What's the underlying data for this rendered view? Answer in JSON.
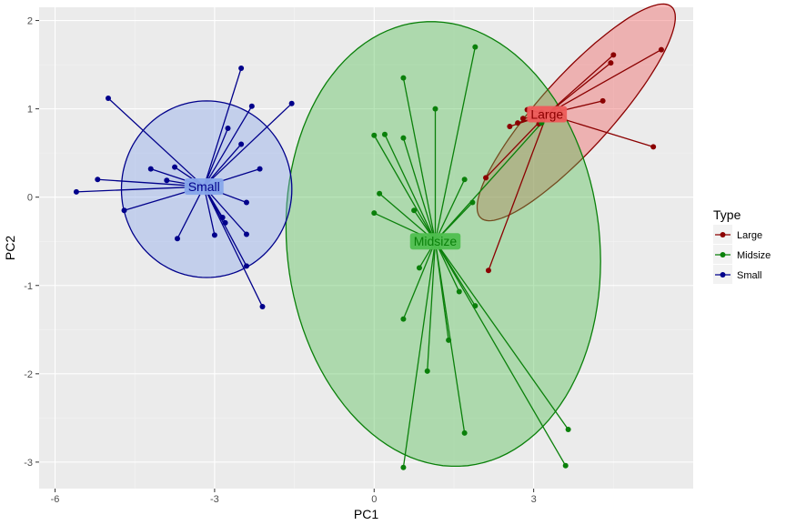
{
  "chart_data": {
    "type": "scatter",
    "xlabel": "PC1",
    "ylabel": "PC2",
    "xlim": [
      -6.3,
      6.0
    ],
    "ylim": [
      -3.3,
      2.15
    ],
    "x_ticks": [
      -6,
      -3,
      0,
      3
    ],
    "y_ticks": [
      -3,
      -2,
      -1,
      0,
      1,
      2
    ],
    "x_tick_labels": [
      "-6",
      "-3",
      "0",
      "3"
    ],
    "y_tick_labels": [
      "-3",
      "-2",
      "-1",
      "0",
      "1",
      "2"
    ],
    "grid": true,
    "legend": {
      "title": "Type",
      "placement": "right",
      "entries": [
        "Large",
        "Midsize",
        "Small"
      ]
    },
    "series": [
      {
        "name": "Large",
        "color": "#8b0000",
        "fill": "#ef5b5b",
        "centroid": [
          3.25,
          0.94
        ],
        "ellipse": {
          "cx": 3.8,
          "cy": 0.96,
          "rx": 2.35,
          "ry": 0.52,
          "angle_deg": 29
        },
        "points": [
          [
            5.4,
            1.67
          ],
          [
            4.5,
            1.61
          ],
          [
            4.45,
            1.52
          ],
          [
            4.3,
            1.09
          ],
          [
            5.25,
            0.57
          ],
          [
            2.88,
            0.99
          ],
          [
            3.15,
            0.96
          ],
          [
            3.1,
            0.83
          ],
          [
            2.8,
            0.89
          ],
          [
            2.7,
            0.84
          ],
          [
            2.55,
            0.8
          ],
          [
            2.1,
            0.22
          ],
          [
            2.15,
            -0.83
          ]
        ]
      },
      {
        "name": "Midsize",
        "color": "#0a800a",
        "fill": "#4fbf4f",
        "centroid": [
          1.15,
          -0.5
        ],
        "ellipse": {
          "cx": 1.3,
          "cy": -0.53,
          "rx": 3.3,
          "ry": 2.5,
          "angle_deg": -8
        },
        "points": [
          [
            1.9,
            1.7
          ],
          [
            0.55,
            1.35
          ],
          [
            1.15,
            1.0
          ],
          [
            3.15,
            0.84
          ],
          [
            0.0,
            0.7
          ],
          [
            0.2,
            0.71
          ],
          [
            0.55,
            0.67
          ],
          [
            1.7,
            0.2
          ],
          [
            0.1,
            0.04
          ],
          [
            0.0,
            -0.18
          ],
          [
            0.75,
            -0.15
          ],
          [
            1.85,
            -0.06
          ],
          [
            0.85,
            -0.8
          ],
          [
            1.6,
            -1.07
          ],
          [
            1.9,
            -1.23
          ],
          [
            0.55,
            -1.38
          ],
          [
            1.4,
            -1.62
          ],
          [
            1.0,
            -1.97
          ],
          [
            1.7,
            -2.67
          ],
          [
            3.65,
            -2.63
          ],
          [
            3.6,
            -3.04
          ],
          [
            0.55,
            -3.06
          ]
        ]
      },
      {
        "name": "Small",
        "color": "#00008b",
        "fill": "#87a6eb",
        "centroid": [
          -3.2,
          0.12
        ],
        "ellipse": {
          "cx": -3.15,
          "cy": 0.09,
          "rx": 1.78,
          "ry": 1.0,
          "angle_deg": 0
        },
        "points": [
          [
            -2.5,
            1.46
          ],
          [
            -5.0,
            1.12
          ],
          [
            -1.55,
            1.06
          ],
          [
            -2.3,
            1.03
          ],
          [
            -2.75,
            0.78
          ],
          [
            -2.5,
            0.6
          ],
          [
            -3.75,
            0.34
          ],
          [
            -4.2,
            0.32
          ],
          [
            -2.15,
            0.32
          ],
          [
            -3.9,
            0.19
          ],
          [
            -5.2,
            0.2
          ],
          [
            -5.6,
            0.06
          ],
          [
            -2.4,
            -0.06
          ],
          [
            -4.7,
            -0.15
          ],
          [
            -2.85,
            -0.23
          ],
          [
            -2.8,
            -0.29
          ],
          [
            -3.0,
            -0.43
          ],
          [
            -2.4,
            -0.42
          ],
          [
            -3.7,
            -0.47
          ],
          [
            -2.4,
            -0.78
          ],
          [
            -2.1,
            -1.24
          ]
        ]
      }
    ]
  }
}
